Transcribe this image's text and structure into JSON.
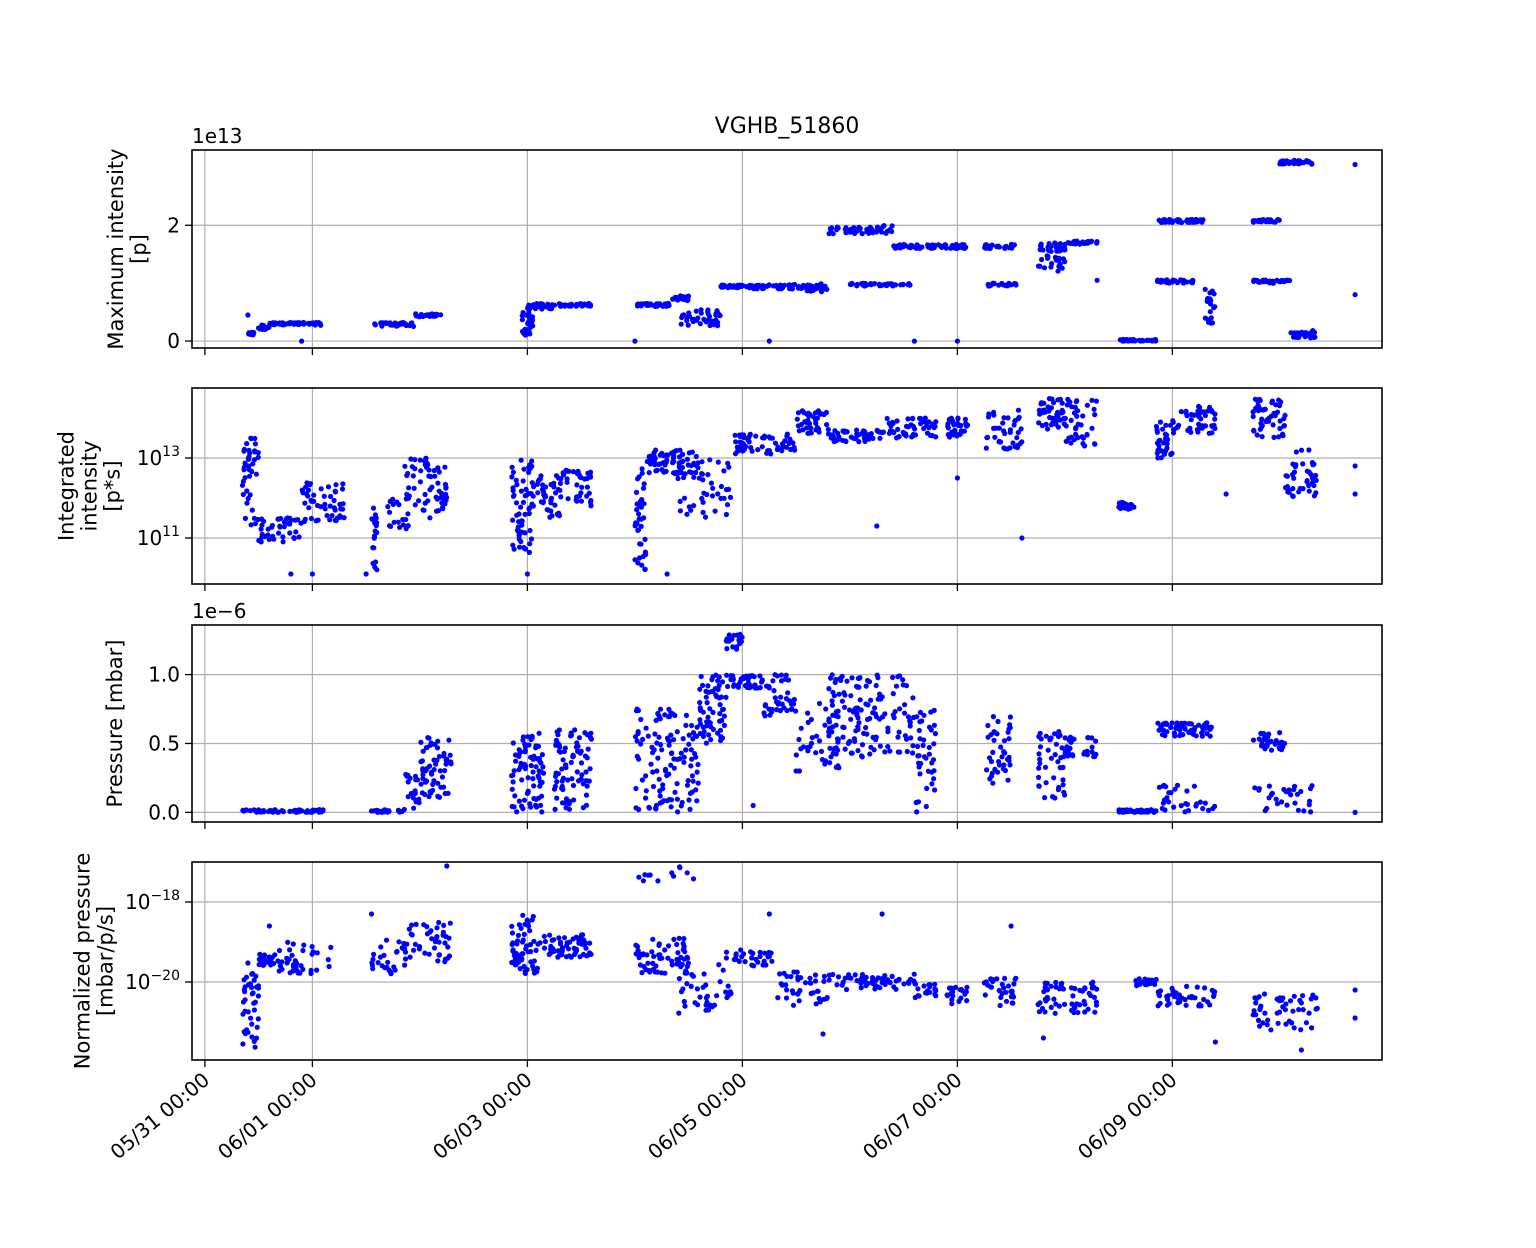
{
  "chart_data": {
    "type": "scatter",
    "title": "VGHB_51860",
    "marker_color": "#0000ff",
    "x_domain": [
      "05/30 12:00",
      "06/10 12:00"
    ],
    "x_ticks": [
      {
        "label": "05/31 00:00",
        "day": 0
      },
      {
        "label": "06/01 00:00",
        "day": 1
      },
      {
        "label": "06/03 00:00",
        "day": 3
      },
      {
        "label": "06/05 00:00",
        "day": 5
      },
      {
        "label": "06/07 00:00",
        "day": 7
      },
      {
        "label": "06/09 00:00",
        "day": 9
      }
    ],
    "xlim_days": [
      -0.12,
      10.95
    ],
    "panels": [
      {
        "ylabel_lines": [
          "Maximum intensity",
          "[p]"
        ],
        "scale": "linear",
        "offset_text": "1e13",
        "ylim": [
          -0.12,
          3.3
        ],
        "yticks": [
          {
            "value": 0,
            "label": "0"
          },
          {
            "value": 2,
            "label": "2"
          }
        ],
        "bands": [
          [
            0.4,
            0.46,
            0.1,
            0.15,
            16
          ],
          [
            0.48,
            0.6,
            0.2,
            0.28,
            20
          ],
          [
            0.6,
            1.0,
            0.28,
            0.32,
            50
          ],
          [
            1.0,
            1.1,
            0.27,
            0.32,
            12
          ],
          [
            1.57,
            1.95,
            0.25,
            0.32,
            30
          ],
          [
            1.95,
            2.2,
            0.42,
            0.47,
            24
          ],
          [
            2.95,
            3.05,
            0.1,
            0.5,
            30
          ],
          [
            3.0,
            3.25,
            0.55,
            0.65,
            34
          ],
          [
            3.25,
            3.6,
            0.6,
            0.65,
            30
          ],
          [
            4.0,
            4.35,
            0.6,
            0.65,
            34
          ],
          [
            4.35,
            4.5,
            0.7,
            0.78,
            20
          ],
          [
            4.4,
            4.8,
            0.25,
            0.55,
            40
          ],
          [
            4.8,
            5.1,
            0.92,
            0.97,
            34
          ],
          [
            5.1,
            5.6,
            0.9,
            0.98,
            50
          ],
          [
            5.6,
            5.8,
            0.85,
            1.0,
            20
          ],
          [
            5.8,
            6.2,
            1.85,
            1.97,
            40
          ],
          [
            6.0,
            6.6,
            0.95,
            1.0,
            40
          ],
          [
            6.2,
            6.4,
            1.85,
            2.0,
            20
          ],
          [
            6.4,
            6.8,
            1.6,
            1.67,
            40
          ],
          [
            6.8,
            7.1,
            1.6,
            1.67,
            30
          ],
          [
            7.25,
            7.55,
            1.6,
            1.67,
            30
          ],
          [
            7.25,
            7.55,
            0.95,
            1.0,
            20
          ],
          [
            7.75,
            8.0,
            1.55,
            1.7,
            30
          ],
          [
            7.75,
            8.0,
            1.2,
            1.5,
            20
          ],
          [
            8.0,
            8.3,
            1.67,
            1.73,
            30
          ],
          [
            8.5,
            8.85,
            0.0,
            0.03,
            40
          ],
          [
            8.85,
            9.3,
            2.05,
            2.1,
            50
          ],
          [
            8.85,
            9.2,
            1.0,
            1.06,
            30
          ],
          [
            9.3,
            9.4,
            0.3,
            0.9,
            20
          ],
          [
            9.75,
            10.0,
            2.05,
            2.1,
            30
          ],
          [
            9.75,
            10.1,
            1.0,
            1.06,
            30
          ],
          [
            10.0,
            10.3,
            3.05,
            3.12,
            40
          ],
          [
            10.1,
            10.35,
            0.05,
            0.2,
            30
          ]
        ],
        "points": [
          [
            0.4,
            0.45
          ],
          [
            0.9,
            0.0
          ],
          [
            4.0,
            0.0
          ],
          [
            5.25,
            0.0
          ],
          [
            10.7,
            3.05
          ],
          [
            10.7,
            0.8
          ],
          [
            6.6,
            0.0
          ],
          [
            7.0,
            0.0
          ],
          [
            8.3,
            1.05
          ]
        ]
      },
      {
        "ylabel_lines": [
          "Integrated",
          "intensity",
          "[p*s]"
        ],
        "scale": "log",
        "ylim_log10": [
          9.85,
          14.75
        ],
        "yticks": [
          {
            "value": 11,
            "label": "10",
            "exp": "11"
          },
          {
            "value": 13,
            "label": "10",
            "exp": "13"
          }
        ],
        "bands": [
          [
            0.35,
            0.5,
            11.3,
            13.5,
            40
          ],
          [
            0.5,
            0.9,
            10.9,
            11.5,
            40
          ],
          [
            0.9,
            1.3,
            11.4,
            12.4,
            50
          ],
          [
            1.55,
            1.6,
            10.2,
            11.8,
            20
          ],
          [
            1.7,
            1.9,
            11.2,
            12.0,
            20
          ],
          [
            1.85,
            2.25,
            11.5,
            13.0,
            60
          ],
          [
            2.85,
            3.05,
            10.5,
            13.0,
            60
          ],
          [
            3.05,
            3.3,
            11.5,
            12.6,
            40
          ],
          [
            3.3,
            3.6,
            11.8,
            12.7,
            40
          ],
          [
            4.0,
            4.1,
            10.2,
            12.8,
            40
          ],
          [
            4.1,
            4.6,
            12.6,
            13.2,
            60
          ],
          [
            4.4,
            4.9,
            11.5,
            13.0,
            50
          ],
          [
            4.9,
            5.5,
            13.1,
            13.6,
            60
          ],
          [
            5.5,
            5.8,
            13.6,
            14.2,
            40
          ],
          [
            5.8,
            6.3,
            13.4,
            13.7,
            50
          ],
          [
            6.3,
            6.8,
            13.5,
            14.0,
            50
          ],
          [
            6.9,
            7.1,
            13.5,
            14.0,
            30
          ],
          [
            7.25,
            7.6,
            13.2,
            14.2,
            40
          ],
          [
            7.75,
            8.0,
            13.6,
            14.5,
            40
          ],
          [
            8.0,
            8.3,
            13.3,
            14.5,
            40
          ],
          [
            8.5,
            8.65,
            11.7,
            11.9,
            30
          ],
          [
            8.85,
            9.0,
            13.0,
            13.9,
            30
          ],
          [
            9.0,
            9.4,
            13.6,
            14.3,
            50
          ],
          [
            9.75,
            10.05,
            13.5,
            14.5,
            50
          ],
          [
            10.05,
            10.35,
            12.0,
            13.2,
            40
          ]
        ],
        "points": [
          [
            1.0,
            10.1
          ],
          [
            0.8,
            10.1
          ],
          [
            3.0,
            10.1
          ],
          [
            4.3,
            10.1
          ],
          [
            7.6,
            11.0
          ],
          [
            6.25,
            11.3
          ],
          [
            9.5,
            12.1
          ],
          [
            10.7,
            12.8
          ],
          [
            10.7,
            12.1
          ],
          [
            7.0,
            12.5
          ],
          [
            1.5,
            10.1
          ]
        ]
      },
      {
        "ylabel_lines": [
          "Pressure [mbar]"
        ],
        "scale": "linear",
        "offset_text": "1e−6",
        "ylim": [
          -0.07,
          1.36
        ],
        "yticks": [
          {
            "value": 0.0,
            "label": "0.0"
          },
          {
            "value": 0.5,
            "label": "0.5"
          },
          {
            "value": 1.0,
            "label": "1.0"
          }
        ],
        "bands": [
          [
            0.35,
            1.1,
            0.0,
            0.02,
            60
          ],
          [
            1.55,
            1.85,
            0.0,
            0.02,
            20
          ],
          [
            1.85,
            2.0,
            0.02,
            0.3,
            20
          ],
          [
            2.0,
            2.3,
            0.1,
            0.55,
            60
          ],
          [
            2.85,
            3.15,
            0.0,
            0.58,
            80
          ],
          [
            3.25,
            3.6,
            0.02,
            0.6,
            80
          ],
          [
            4.0,
            4.6,
            0.0,
            0.75,
            120
          ],
          [
            4.6,
            4.85,
            0.5,
            1.0,
            60
          ],
          [
            4.85,
            5.2,
            0.9,
            1.0,
            40
          ],
          [
            4.85,
            5.0,
            1.15,
            1.3,
            20
          ],
          [
            5.2,
            5.5,
            0.7,
            1.0,
            40
          ],
          [
            5.5,
            5.9,
            0.3,
            0.8,
            40
          ],
          [
            5.8,
            6.6,
            0.4,
            1.0,
            140
          ],
          [
            6.6,
            6.8,
            0.0,
            0.75,
            40
          ],
          [
            7.25,
            7.5,
            0.2,
            0.7,
            40
          ],
          [
            7.75,
            8.0,
            0.1,
            0.6,
            40
          ],
          [
            8.0,
            8.3,
            0.4,
            0.55,
            30
          ],
          [
            8.5,
            8.85,
            0.0,
            0.02,
            40
          ],
          [
            8.85,
            9.4,
            0.55,
            0.65,
            60
          ],
          [
            8.85,
            9.4,
            0.0,
            0.2,
            30
          ],
          [
            9.75,
            10.05,
            0.45,
            0.58,
            30
          ],
          [
            9.75,
            10.35,
            0.0,
            0.2,
            30
          ]
        ],
        "points": [
          [
            10.7,
            0.0
          ],
          [
            5.5,
            0.3
          ],
          [
            5.1,
            0.05
          ],
          [
            4.2,
            0.05
          ]
        ]
      },
      {
        "ylabel_lines": [
          "Normalized pressure",
          "[mbar/p/s]"
        ],
        "scale": "log",
        "ylim_log10": [
          -21.95,
          -17.0
        ],
        "yticks": [
          {
            "value": -20,
            "label": "10",
            "exp": "−20"
          },
          {
            "value": -18,
            "label": "10",
            "exp": "−18"
          }
        ],
        "bands": [
          [
            0.35,
            0.5,
            -21.8,
            -19.5,
            40
          ],
          [
            0.5,
            0.65,
            -19.6,
            -19.3,
            20
          ],
          [
            0.65,
            1.2,
            -19.8,
            -19.0,
            40
          ],
          [
            1.55,
            1.9,
            -19.8,
            -18.8,
            30
          ],
          [
            1.9,
            2.3,
            -19.5,
            -18.5,
            40
          ],
          [
            2.85,
            3.1,
            -19.8,
            -18.3,
            60
          ],
          [
            3.1,
            3.6,
            -19.4,
            -18.8,
            60
          ],
          [
            4.0,
            4.5,
            -19.8,
            -18.9,
            60
          ],
          [
            4.4,
            4.9,
            -20.8,
            -19.5,
            40
          ],
          [
            4.0,
            4.6,
            -17.5,
            -17.1,
            12
          ],
          [
            4.85,
            5.3,
            -19.6,
            -19.2,
            30
          ],
          [
            5.3,
            5.8,
            -20.6,
            -19.7,
            40
          ],
          [
            5.8,
            6.6,
            -20.2,
            -19.8,
            60
          ],
          [
            6.6,
            6.8,
            -20.4,
            -20.0,
            20
          ],
          [
            6.9,
            7.1,
            -20.6,
            -20.0,
            20
          ],
          [
            7.25,
            7.6,
            -20.6,
            -19.9,
            30
          ],
          [
            7.75,
            8.0,
            -20.8,
            -20.0,
            30
          ],
          [
            8.0,
            8.3,
            -20.8,
            -20.0,
            30
          ],
          [
            8.65,
            8.85,
            -20.1,
            -19.9,
            20
          ],
          [
            8.85,
            9.4,
            -20.6,
            -20.1,
            40
          ],
          [
            9.75,
            10.35,
            -21.2,
            -20.3,
            50
          ]
        ],
        "points": [
          [
            0.6,
            -18.6
          ],
          [
            1.55,
            -18.3
          ],
          [
            2.25,
            -17.1
          ],
          [
            5.25,
            -18.3
          ],
          [
            6.3,
            -18.3
          ],
          [
            7.5,
            -18.6
          ],
          [
            10.7,
            -20.2
          ],
          [
            10.7,
            -20.9
          ],
          [
            9.4,
            -21.5
          ],
          [
            10.2,
            -21.7
          ],
          [
            7.8,
            -21.4
          ],
          [
            5.75,
            -21.3
          ]
        ]
      }
    ]
  }
}
